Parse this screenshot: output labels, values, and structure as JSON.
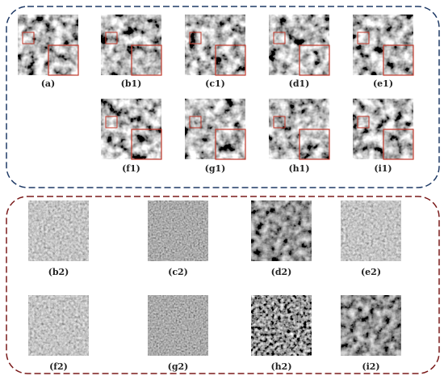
{
  "top_panel": {
    "row1": [
      "(a)",
      "(b1)",
      "(c1)",
      "(d1)",
      "(e1)"
    ],
    "row2": [
      "(f1)",
      "(g1)",
      "(h1)",
      "(i1)"
    ]
  },
  "bottom_panel": {
    "row1": [
      "(b2)",
      "(c2)",
      "(d2)",
      "(e2)"
    ],
    "row2": [
      "(f2)",
      "(g2)",
      "(h2)",
      "(i2)"
    ]
  }
}
